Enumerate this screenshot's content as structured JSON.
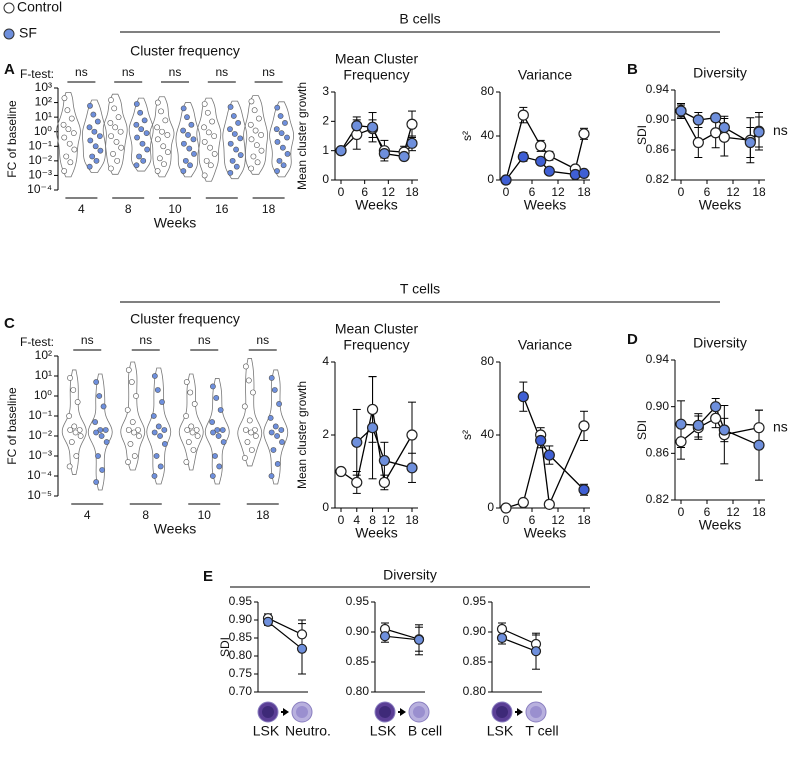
{
  "figure": {
    "legend": [
      {
        "name": "Control",
        "color": "#ffffff"
      },
      {
        "name": "SF",
        "color": "#6e8fdc"
      }
    ],
    "sections": [
      "B cells",
      "T cells",
      "Diversity"
    ],
    "panel_labels": [
      "A",
      "B",
      "C",
      "D",
      "E"
    ]
  },
  "chart_data": [
    {
      "type": "violin",
      "title": "Cluster frequency",
      "test_label": "F-test:",
      "annotations": [
        "ns",
        "ns",
        "ns",
        "ns",
        "ns"
      ],
      "xlabel": "Weeks",
      "ylabel": "FC of baseline",
      "log": true,
      "categories": [
        "4",
        "8",
        "10",
        "16",
        "18"
      ],
      "ylim": [
        0.0001,
        1000
      ],
      "yticks": [
        {
          "value": 1000,
          "label": "10³"
        },
        {
          "value": 100,
          "label": "10²"
        },
        {
          "value": 10,
          "label": "10¹"
        },
        {
          "value": 1,
          "label": "10⁰"
        },
        {
          "value": 0.1,
          "label": "10⁻¹"
        },
        {
          "value": 0.01,
          "label": "10⁻²"
        },
        {
          "value": 0.001,
          "label": "10⁻³"
        },
        {
          "value": 0.0001,
          "label": "10⁻⁴"
        }
      ],
      "series": [
        {
          "name": "Control",
          "color": "#ffffff",
          "values": [
            [
              200,
              30,
              8,
              3,
              1.5,
              0.8,
              0.4,
              0.15,
              0.06,
              0.02,
              0.008,
              0.002
            ],
            [
              150,
              40,
              10,
              4,
              2,
              1,
              0.5,
              0.2,
              0.08,
              0.03,
              0.01,
              0.003
            ],
            [
              100,
              25,
              6,
              2,
              1,
              0.6,
              0.3,
              0.1,
              0.04,
              0.015,
              0.006,
              0.002
            ],
            [
              80,
              20,
              5,
              2,
              0.9,
              0.5,
              0.2,
              0.08,
              0.03,
              0.01,
              0.005,
              0.001
            ],
            [
              120,
              30,
              8,
              3,
              1.2,
              0.6,
              0.3,
              0.12,
              0.05,
              0.02,
              0.008,
              0.003
            ]
          ]
        },
        {
          "name": "SF",
          "color": "#6e8fdc",
          "values": [
            [
              60,
              15,
              5,
              2,
              1,
              0.5,
              0.25,
              0.1,
              0.05,
              0.02,
              0.01,
              0.004
            ],
            [
              80,
              20,
              6,
              3,
              1.5,
              0.8,
              0.4,
              0.15,
              0.06,
              0.02,
              0.01,
              0.005
            ],
            [
              40,
              10,
              3,
              1.2,
              0.6,
              0.3,
              0.15,
              0.07,
              0.03,
              0.01,
              0.005,
              0.002
            ],
            [
              50,
              12,
              4,
              1.5,
              0.7,
              0.35,
              0.15,
              0.06,
              0.025,
              0.01,
              0.004,
              0.0015
            ],
            [
              45,
              12,
              4,
              1.5,
              0.8,
              0.4,
              0.2,
              0.08,
              0.03,
              0.01,
              0.005,
              0.002
            ]
          ]
        }
      ]
    },
    {
      "type": "line",
      "title": [
        "Mean Cluster",
        "Frequency"
      ],
      "xlabel": "Weeks",
      "ylabel": "Mean cluster growth",
      "xlim": [
        0,
        18
      ],
      "xticks": [
        0,
        6,
        12,
        18
      ],
      "ylim": [
        0,
        3
      ],
      "yticks": [
        0,
        1,
        2,
        3
      ],
      "series": [
        {
          "name": "Control",
          "color": "#ffffff",
          "x": [
            0,
            4,
            8,
            11,
            16,
            18
          ],
          "values": [
            1,
            1.55,
            1.75,
            1.0,
            0.95,
            1.9
          ],
          "errors": [
            0,
            0.5,
            0.3,
            0.35,
            0.2,
            0.45
          ]
        },
        {
          "name": "SF",
          "color": "#6e8fdc",
          "x": [
            0,
            4,
            8,
            11,
            16,
            18
          ],
          "values": [
            1,
            1.85,
            1.8,
            0.9,
            0.8,
            1.25
          ],
          "errors": [
            0,
            0.3,
            0.5,
            0.15,
            0.1,
            0.25
          ]
        }
      ]
    },
    {
      "type": "line",
      "title": [
        "Variance"
      ],
      "xlabel": "Weeks",
      "ylabel": "s²",
      "xlim": [
        0,
        18
      ],
      "xticks": [
        0,
        6,
        12,
        18
      ],
      "ylim": [
        0,
        80
      ],
      "yticks": [
        0,
        40,
        80
      ],
      "series": [
        {
          "name": "Control",
          "color": "#ffffff",
          "x": [
            0,
            4,
            8,
            10,
            16,
            18
          ],
          "values": [
            0,
            59,
            31,
            22,
            10,
            42
          ],
          "errors": [
            0,
            7,
            5,
            4,
            3,
            5
          ]
        },
        {
          "name": "SF",
          "color": "#3f5fd4",
          "x": [
            0,
            4,
            8,
            10,
            16,
            18
          ],
          "values": [
            0,
            21,
            17,
            8,
            5,
            6
          ],
          "errors": [
            0,
            4,
            3,
            3,
            2,
            2
          ]
        }
      ]
    },
    {
      "type": "line",
      "title": [
        "Diversity"
      ],
      "xlabel": "Weeks",
      "ylabel": "SDI",
      "annotation": "ns",
      "xlim": [
        0,
        18
      ],
      "xticks": [
        0,
        6,
        12,
        18
      ],
      "ylim": [
        0.82,
        0.94
      ],
      "yticks": [
        0.82,
        0.86,
        {
          "value": 0.9,
          "label": "0.90"
        },
        0.94
      ],
      "series": [
        {
          "name": "Control",
          "color": "#ffffff",
          "x": [
            0,
            4,
            8,
            10,
            16,
            18
          ],
          "values": [
            0.912,
            0.87,
            0.883,
            0.877,
            0.873,
            0.885
          ],
          "errors": [
            0.01,
            0.02,
            0.02,
            0.025,
            0.03,
            0.025
          ]
        },
        {
          "name": "SF",
          "color": "#6e8fdc",
          "x": [
            0,
            4,
            8,
            10,
            16,
            18
          ],
          "values": [
            0.912,
            0.9,
            0.903,
            0.89,
            0.87,
            0.884
          ],
          "errors": [
            0.008,
            0.01,
            0.005,
            0.015,
            0.02,
            0.02
          ]
        }
      ]
    },
    {
      "type": "violin",
      "title": "Cluster frequency",
      "test_label": "F-test:",
      "annotations": [
        "ns",
        "ns",
        "ns",
        "ns"
      ],
      "xlabel": "Weeks",
      "ylabel": "FC of baseline",
      "log": true,
      "categories": [
        "4",
        "8",
        "10",
        "18"
      ],
      "ylim": [
        1e-05,
        100
      ],
      "yticks": [
        {
          "value": 100,
          "label": "10²"
        },
        {
          "value": 10,
          "label": "10¹"
        },
        {
          "value": 1,
          "label": "10⁰"
        },
        {
          "value": 0.1,
          "label": "10⁻¹"
        },
        {
          "value": 0.01,
          "label": "10⁻²"
        },
        {
          "value": 0.001,
          "label": "10⁻³"
        },
        {
          "value": 0.0001,
          "label": "10⁻⁴"
        },
        {
          "value": 1e-05,
          "label": "10⁻⁵"
        }
      ],
      "series": [
        {
          "name": "Control",
          "color": "#ffffff",
          "values": [
            [
              8,
              2,
              0.5,
              0.1,
              0.03,
              0.02,
              0.02,
              0.015,
              0.01,
              0.005,
              0.001,
              0.0003
            ],
            [
              20,
              5,
              1,
              0.2,
              0.05,
              0.02,
              0.02,
              0.015,
              0.01,
              0.004,
              0.001,
              0.0005
            ],
            [
              5,
              1.5,
              0.4,
              0.1,
              0.03,
              0.02,
              0.02,
              0.015,
              0.01,
              0.005,
              0.002,
              0.0005
            ],
            [
              30,
              6,
              1.5,
              0.3,
              0.06,
              0.02,
              0.02,
              0.015,
              0.01,
              0.005,
              0.002,
              0.0008
            ]
          ]
        },
        {
          "name": "SF",
          "color": "#6e8fdc",
          "values": [
            [
              5,
              1,
              0.3,
              0.05,
              0.02,
              0.02,
              0.015,
              0.01,
              0.005,
              0.001,
              0.0002,
              5e-05
            ],
            [
              10,
              2,
              0.5,
              0.1,
              0.03,
              0.02,
              0.015,
              0.01,
              0.004,
              0.001,
              0.0003,
              0.0001
            ],
            [
              3,
              0.8,
              0.2,
              0.05,
              0.02,
              0.02,
              0.015,
              0.01,
              0.005,
              0.001,
              0.0003,
              0.0001
            ],
            [
              8,
              2,
              0.4,
              0.08,
              0.03,
              0.02,
              0.015,
              0.01,
              0.005,
              0.002,
              0.0004,
              0.0001
            ]
          ]
        }
      ]
    },
    {
      "type": "line",
      "title": [
        "Mean Cluster",
        "Frequency"
      ],
      "xlabel": "Weeks",
      "ylabel": "Mean cluster growth",
      "xlim": [
        0,
        18
      ],
      "xticks": [
        0,
        4,
        8,
        12,
        18
      ],
      "ylim": [
        0,
        4
      ],
      "yticks": [
        0,
        2,
        4
      ],
      "series": [
        {
          "name": "Control",
          "color": "#ffffff",
          "x": [
            0,
            4,
            8,
            11,
            18
          ],
          "values": [
            1,
            0.7,
            2.7,
            0.7,
            2.0
          ],
          "errors": [
            0,
            0.3,
            0.9,
            0.2,
            0.9
          ]
        },
        {
          "name": "SF",
          "color": "#6e8fdc",
          "x": [
            4,
            8,
            11,
            18
          ],
          "values": [
            1.8,
            2.2,
            1.3,
            1.1
          ],
          "errors": [
            0.9,
            1.4,
            0.5,
            0.4
          ]
        }
      ]
    },
    {
      "type": "line",
      "title": [
        "Variance"
      ],
      "xlabel": "Weeks",
      "ylabel": "s²",
      "xlim": [
        0,
        18
      ],
      "xticks": [
        0,
        6,
        12,
        18
      ],
      "ylim": [
        0,
        80
      ],
      "yticks": [
        0,
        40,
        80
      ],
      "series": [
        {
          "name": "Control",
          "color": "#ffffff",
          "x": [
            0,
            4,
            8,
            10,
            18
          ],
          "values": [
            0,
            3,
            40,
            2,
            45
          ],
          "errors": [
            0,
            0,
            4,
            0,
            8
          ]
        },
        {
          "name": "SF",
          "color": "#3f5fd4",
          "x": [
            4,
            8,
            10,
            18
          ],
          "values": [
            61,
            37,
            29,
            10
          ],
          "errors": [
            8,
            4,
            5,
            3
          ]
        }
      ]
    },
    {
      "type": "line",
      "title": [
        "Diversity"
      ],
      "xlabel": "Weeks",
      "ylabel": "SDI",
      "annotation": "ns",
      "xlim": [
        0,
        18
      ],
      "xticks": [
        0,
        6,
        12,
        18
      ],
      "ylim": [
        0.82,
        0.94
      ],
      "yticks": [
        0.82,
        0.86,
        {
          "value": 0.9,
          "label": "0.90"
        },
        0.94
      ],
      "series": [
        {
          "name": "Control",
          "color": "#ffffff",
          "x": [
            0,
            4,
            8,
            10,
            18
          ],
          "values": [
            0.87,
            0.882,
            0.89,
            0.876,
            0.882
          ],
          "errors": [
            0.015,
            0.01,
            0.008,
            0.025,
            0.015
          ]
        },
        {
          "name": "SF",
          "color": "#6e8fdc",
          "x": [
            0,
            4,
            8,
            10,
            18
          ],
          "values": [
            0.885,
            0.884,
            0.9,
            0.88,
            0.867
          ],
          "errors": [
            0.02,
            0.01,
            0.007,
            0.01,
            0.03
          ]
        }
      ]
    },
    {
      "type": "pair",
      "ylabel": "SDI",
      "categories": [
        "LSK",
        "Neutro."
      ],
      "ylim": [
        0.7,
        0.95
      ],
      "yticks": [
        0.95,
        {
          "value": 0.9,
          "label": "0.90"
        },
        0.85,
        {
          "value": 0.8,
          "label": "0.80"
        },
        0.75,
        {
          "value": 0.7,
          "label": "0.70"
        }
      ],
      "series": [
        {
          "name": "Control",
          "color": "#ffffff",
          "values": [
            0.905,
            0.86
          ],
          "errors": [
            0.012,
            0.04
          ]
        },
        {
          "name": "SF",
          "color": "#6e8fdc",
          "values": [
            0.895,
            0.82
          ],
          "errors": [
            0.01,
            0.07
          ]
        }
      ]
    },
    {
      "type": "pair",
      "categories": [
        "LSK",
        "B cell"
      ],
      "ylim": [
        0.8,
        0.95
      ],
      "yticks": [
        0.95,
        {
          "value": 0.9,
          "label": "0.90"
        },
        0.85,
        {
          "value": 0.8,
          "label": "0.80"
        }
      ],
      "series": [
        {
          "name": "Control",
          "color": "#ffffff",
          "values": [
            0.905,
            0.888
          ],
          "errors": [
            0.01,
            0.02
          ]
        },
        {
          "name": "SF",
          "color": "#6e8fdc",
          "values": [
            0.893,
            0.887
          ],
          "errors": [
            0.01,
            0.025
          ]
        }
      ]
    },
    {
      "type": "pair",
      "categories": [
        "LSK",
        "T cell"
      ],
      "ylim": [
        0.8,
        0.95
      ],
      "yticks": [
        0.95,
        {
          "value": 0.9,
          "label": "0.90"
        },
        0.85,
        {
          "value": 0.8,
          "label": "0.80"
        }
      ],
      "series": [
        {
          "name": "Control",
          "color": "#ffffff",
          "values": [
            0.905,
            0.88
          ],
          "errors": [
            0.01,
            0.015
          ]
        },
        {
          "name": "SF",
          "color": "#6e8fdc",
          "values": [
            0.89,
            0.868
          ],
          "errors": [
            0.01,
            0.03
          ]
        }
      ]
    }
  ]
}
